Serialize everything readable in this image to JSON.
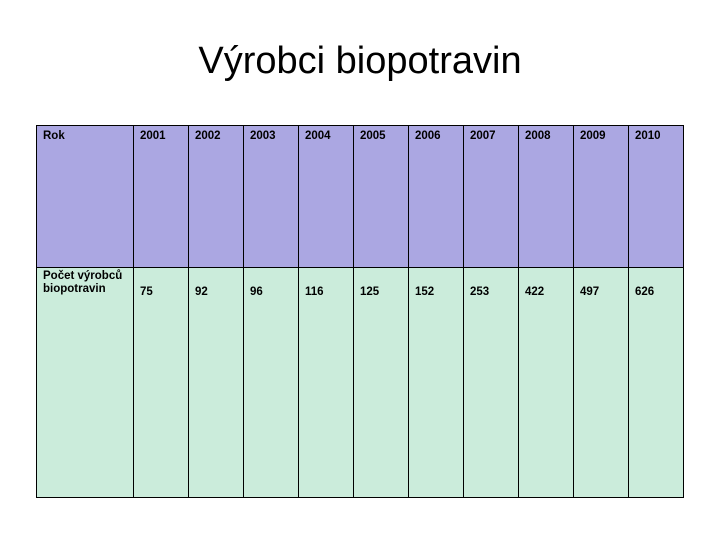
{
  "title": "Výrobci biopotravin",
  "colors": {
    "header_row_bg": "#ABA7E2",
    "data_row_bg": "#CBECDB",
    "border": "#000000"
  },
  "table": {
    "row1_label": "Rok",
    "years": [
      "2001",
      "2002",
      "2003",
      "2004",
      "2005",
      "2006",
      "2007",
      "2008",
      "2009",
      "2010"
    ],
    "row2_label": "Počet výrobců\nbiopotravin",
    "values": [
      "75",
      "92",
      "96",
      "116",
      "125",
      "152",
      "253",
      "422",
      "497",
      "626"
    ]
  },
  "chart_data": {
    "type": "table",
    "title": "Výrobci biopotravin",
    "categories": [
      "2001",
      "2002",
      "2003",
      "2004",
      "2005",
      "2006",
      "2007",
      "2008",
      "2009",
      "2010"
    ],
    "series": [
      {
        "name": "Počet výrobců biopotravin",
        "values": [
          75,
          92,
          96,
          116,
          125,
          152,
          253,
          422,
          497,
          626
        ]
      }
    ],
    "xlabel": "Rok",
    "ylabel": "Počet výrobců biopotravin"
  }
}
